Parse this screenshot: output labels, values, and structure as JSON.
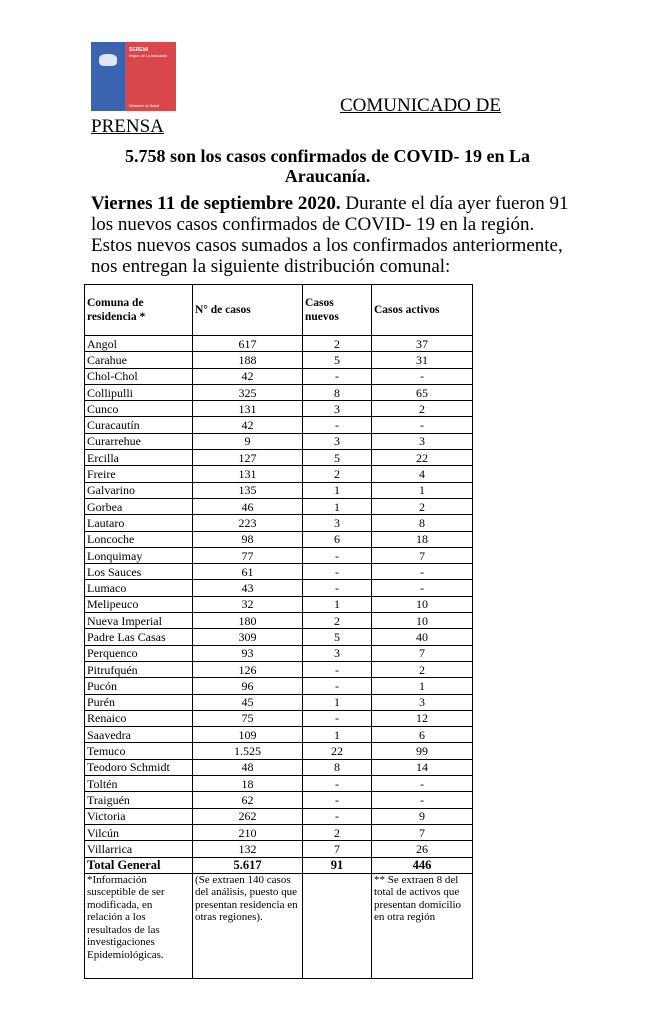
{
  "logo": {
    "name": "SEREMI",
    "region": "Región de La Araucanía",
    "ministry": "Ministerio de Salud",
    "colors": {
      "blue": "#3a64b0",
      "red": "#d9474b"
    }
  },
  "header": {
    "line1": "COMUNICADO DE",
    "line2": "PRENSA"
  },
  "title": "5.758 son los casos confirmados de COVID- 19 en La Araucanía.",
  "paragraph": {
    "date": "Viernes 11 de septiembre 2020.",
    "text": " Durante el día ayer fueron 91 los nuevos casos confirmados de COVID- 19 en la región. Estos nuevos casos sumados a los confirmados anteriormente, nos entregan la siguiente distribución comunal:"
  },
  "table": {
    "headers": [
      "Comuna de residencia *",
      "N° de casos",
      "Casos nuevos",
      "Casos activos"
    ],
    "rows": [
      [
        "Angol",
        "617",
        "2",
        "37"
      ],
      [
        "Carahue",
        "188",
        "5",
        "31"
      ],
      [
        "Chol-Chol",
        "42",
        "-",
        "-"
      ],
      [
        "Collipulli",
        "325",
        "8",
        "65"
      ],
      [
        "Cunco",
        "131",
        "3",
        "2"
      ],
      [
        "Curacautín",
        "42",
        "-",
        "-"
      ],
      [
        "Curarrehue",
        "9",
        "3",
        "3"
      ],
      [
        "Ercilla",
        "127",
        "5",
        "22"
      ],
      [
        "Freire",
        "131",
        "2",
        "4"
      ],
      [
        "Galvarino",
        "135",
        "1",
        "1"
      ],
      [
        "Gorbea",
        "46",
        "1",
        "2"
      ],
      [
        "Lautaro",
        "223",
        "3",
        "8"
      ],
      [
        "Loncoche",
        "98",
        "6",
        "18"
      ],
      [
        "Lonquimay",
        "77",
        "-",
        "7"
      ],
      [
        "Los Sauces",
        "61",
        "-",
        "-"
      ],
      [
        "Lumaco",
        "43",
        "-",
        "-"
      ],
      [
        "Melipeuco",
        "32",
        "1",
        "10"
      ],
      [
        "Nueva Imperial",
        "180",
        "2",
        "10"
      ],
      [
        "Padre Las Casas",
        "309",
        "5",
        "40"
      ],
      [
        "Perquenco",
        "93",
        "3",
        "7"
      ],
      [
        "Pitrufquén",
        "126",
        "-",
        "2"
      ],
      [
        "Pucón",
        "96",
        "-",
        "1"
      ],
      [
        "Purén",
        "45",
        "1",
        "3"
      ],
      [
        "Renaico",
        "75",
        "-",
        "12"
      ],
      [
        "Saavedra",
        "109",
        "1",
        "6"
      ],
      [
        "Temuco",
        "1.525",
        "22",
        "99"
      ],
      [
        "Teodoro Schmidt",
        "48",
        "8",
        "14"
      ],
      [
        "Toltén",
        "18",
        "-",
        "-"
      ],
      [
        "Traiguén",
        "62",
        "-",
        "-"
      ],
      [
        "Victoria",
        "262",
        "-",
        "9"
      ],
      [
        "Vilcún",
        "210",
        "2",
        "7"
      ],
      [
        "Villarrica",
        "132",
        "7",
        "26"
      ]
    ],
    "total": [
      "Total General",
      "5.617",
      "91",
      "446"
    ],
    "notes": [
      "*Información susceptible de ser modificada, en relación a los resultados de las investigaciones Epidemiológicas.",
      "(Se extraen 140 casos del análisis, puesto que presentan residencia en otras regiones).",
      "",
      "** Se extraen 8 del total de activos que presentan domicilio en otra región"
    ]
  }
}
